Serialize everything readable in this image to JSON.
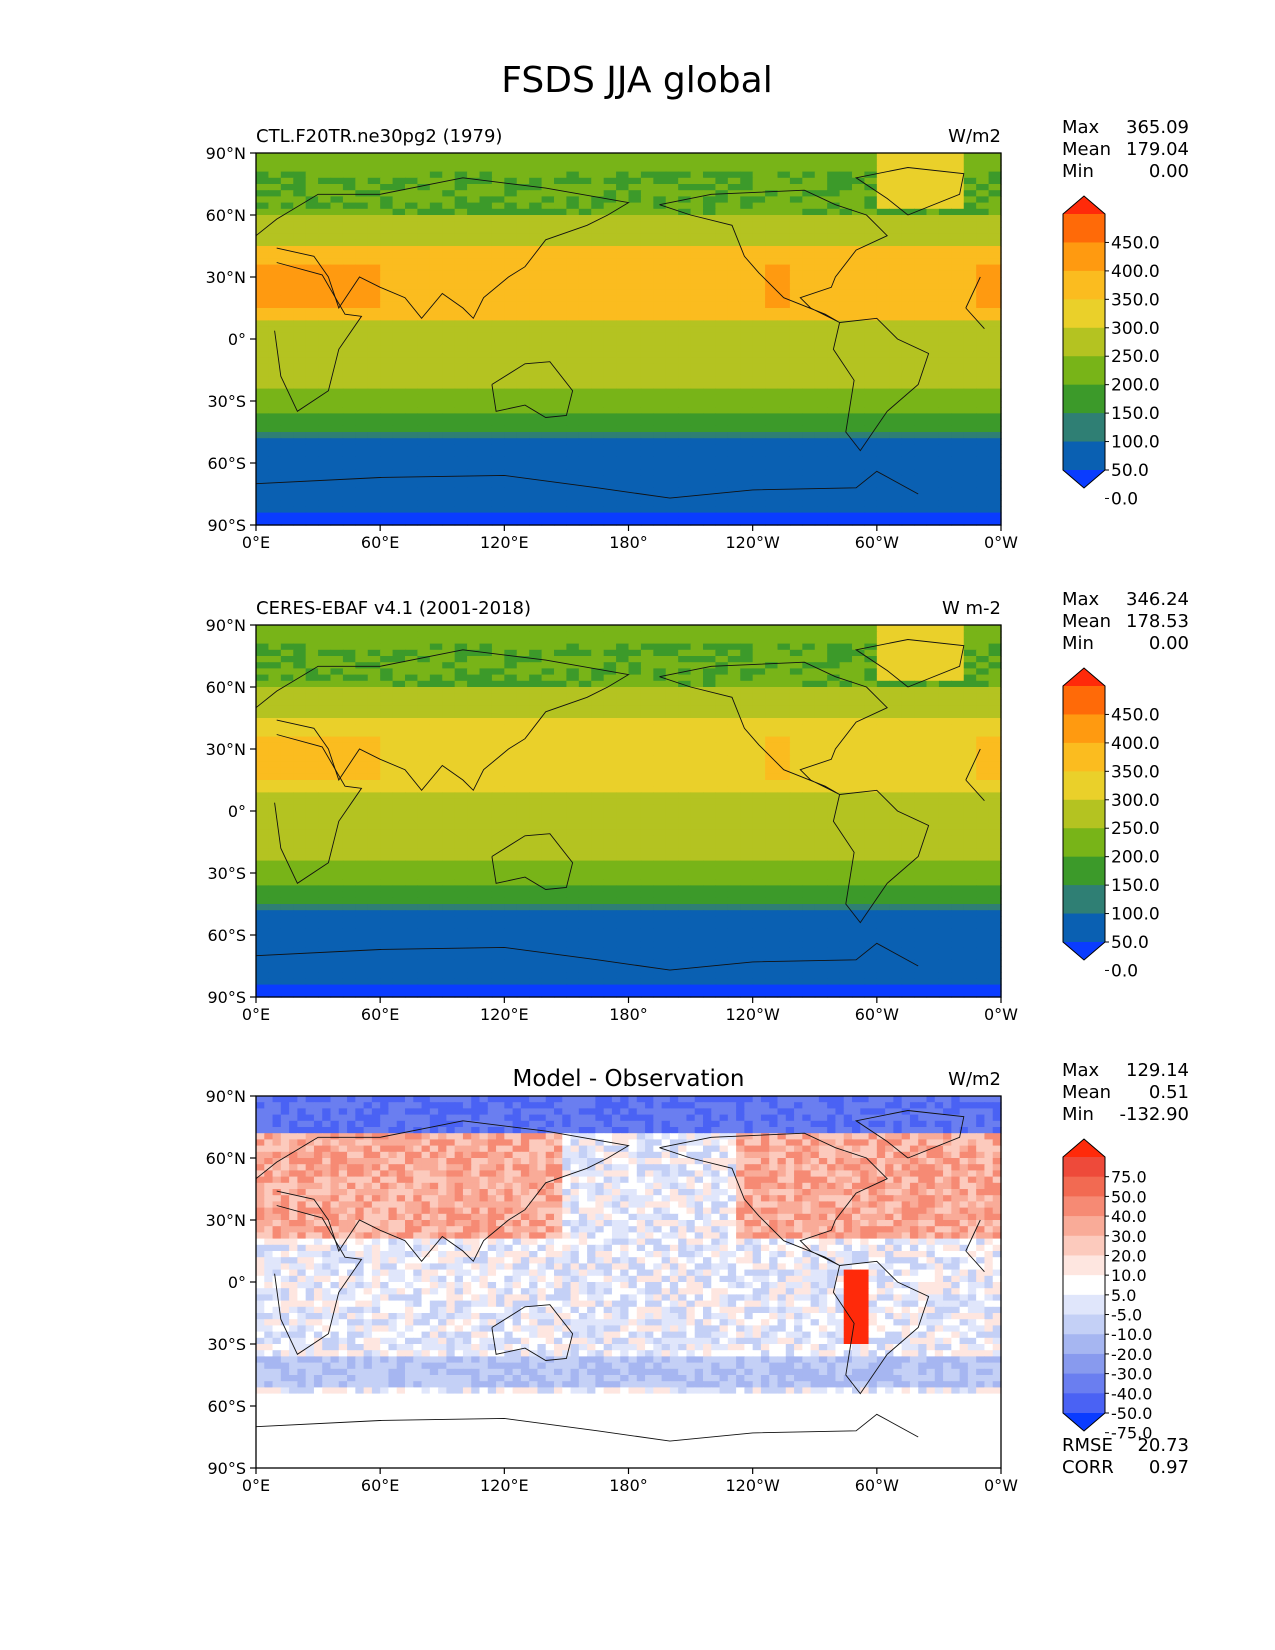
{
  "figure": {
    "title": "FSDS JJA global"
  },
  "chart_data": [
    {
      "type": "heatmap",
      "panel": "test",
      "title": "",
      "subtitle_left": "CTL.F20TR.ne30pg2 (1979)",
      "units": "W/m2",
      "x_ticks": [
        "0°E",
        "60°E",
        "120°E",
        "180°",
        "120°W",
        "60°W",
        "0°W"
      ],
      "y_ticks": [
        "90°N",
        "60°N",
        "30°N",
        "0°",
        "30°S",
        "60°S",
        "90°S"
      ],
      "xlim": [
        0,
        360
      ],
      "ylim": [
        -90,
        90
      ],
      "stats": [
        {
          "label": "Max",
          "value": "365.09"
        },
        {
          "label": "Mean",
          "value": "179.04"
        },
        {
          "label": "Min",
          "value": "0.00"
        }
      ],
      "colorbar": {
        "levels": [
          "450.0",
          "400.0",
          "350.0",
          "300.0",
          "250.0",
          "200.0",
          "150.0",
          "100.0",
          "50.0",
          "0.0"
        ],
        "colors": [
          "#ff2a0a",
          "#ff6a08",
          "#ff9a10",
          "#fbbc1f",
          "#ead02a",
          "#b4c321",
          "#78b418",
          "#3c9a2a",
          "#2f7f74",
          "#0a60b2",
          "#0a3cff"
        ],
        "extend": "both"
      }
    },
    {
      "type": "heatmap",
      "panel": "reference",
      "title": "",
      "subtitle_left": "CERES-EBAF v4.1 (2001-2018)",
      "units": "W m-2",
      "x_ticks": [
        "0°E",
        "60°E",
        "120°E",
        "180°",
        "120°W",
        "60°W",
        "0°W"
      ],
      "y_ticks": [
        "90°N",
        "60°N",
        "30°N",
        "0°",
        "30°S",
        "60°S",
        "90°S"
      ],
      "xlim": [
        0,
        360
      ],
      "ylim": [
        -90,
        90
      ],
      "stats": [
        {
          "label": "Max",
          "value": "346.24"
        },
        {
          "label": "Mean",
          "value": "178.53"
        },
        {
          "label": "Min",
          "value": "0.00"
        }
      ],
      "colorbar": {
        "levels": [
          "450.0",
          "400.0",
          "350.0",
          "300.0",
          "250.0",
          "200.0",
          "150.0",
          "100.0",
          "50.0",
          "0.0"
        ],
        "colors": [
          "#ff2a0a",
          "#ff6a08",
          "#ff9a10",
          "#fbbc1f",
          "#ead02a",
          "#b4c321",
          "#78b418",
          "#3c9a2a",
          "#2f7f74",
          "#0a60b2",
          "#0a3cff"
        ],
        "extend": "both"
      }
    },
    {
      "type": "heatmap",
      "panel": "difference",
      "title": "Model - Observation",
      "subtitle_left": "",
      "units": "W/m2",
      "x_ticks": [
        "0°E",
        "60°E",
        "120°E",
        "180°",
        "120°W",
        "60°W",
        "0°W"
      ],
      "y_ticks": [
        "90°N",
        "60°N",
        "30°N",
        "0°",
        "30°S",
        "60°S",
        "90°S"
      ],
      "xlim": [
        0,
        360
      ],
      "ylim": [
        -90,
        90
      ],
      "stats": [
        {
          "label": "Max",
          "value": "129.14"
        },
        {
          "label": "Mean",
          "value": "0.51"
        },
        {
          "label": "Min",
          "value": "-132.90"
        }
      ],
      "extra_stats": [
        {
          "label": "RMSE",
          "value": "20.73"
        },
        {
          "label": "CORR",
          "value": "0.97"
        }
      ],
      "colorbar": {
        "levels": [
          "75.0",
          "50.0",
          "40.0",
          "30.0",
          "20.0",
          "10.0",
          "5.0",
          "-5.0",
          "-10.0",
          "-20.0",
          "-30.0",
          "-40.0",
          "-50.0",
          "-75.0"
        ],
        "colors": [
          "#ff2a0a",
          "#ee4a3a",
          "#f26a52",
          "#f68a74",
          "#f9ab98",
          "#fccabd",
          "#fee6e0",
          "#ffffff",
          "#e0e6fb",
          "#c4d0f6",
          "#a6b6f1",
          "#889aee",
          "#6a7ef0",
          "#4a62f4",
          "#0a3cff"
        ],
        "extend": "both"
      }
    }
  ]
}
